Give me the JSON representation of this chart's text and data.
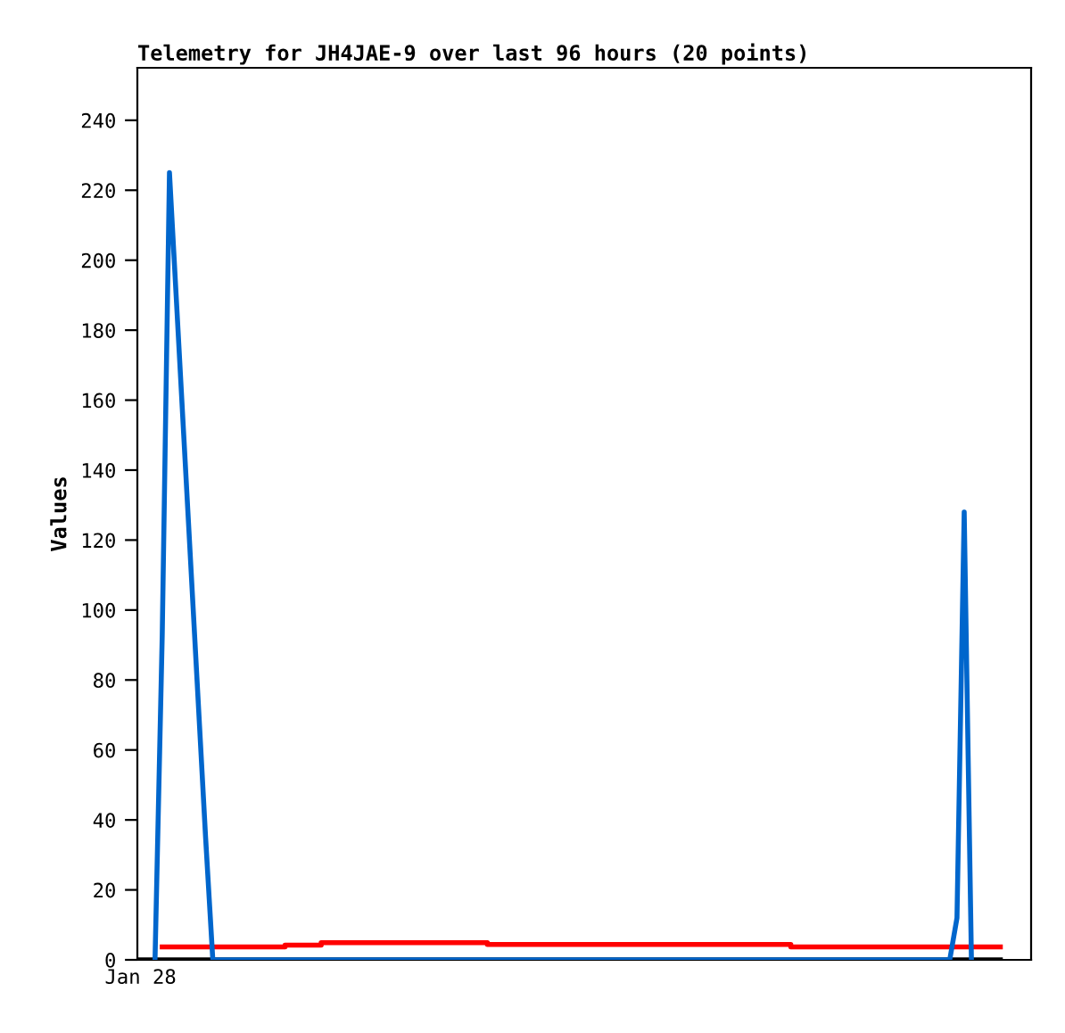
{
  "chart_data": {
    "type": "line",
    "title": "Telemetry for JH4JAE-9 over last 96 hours (20 points)",
    "ylabel": "Values",
    "categories": [
      null,
      "Jan 28",
      null,
      null,
      null,
      null,
      null,
      null,
      null,
      null,
      null,
      null,
      null,
      null,
      null,
      null,
      null,
      null,
      null,
      null,
      null,
      null,
      null,
      null,
      null,
      null,
      null,
      null,
      null,
      null,
      null,
      null,
      null,
      null,
      null,
      null,
      null,
      null,
      null,
      null,
      null,
      null,
      null,
      null,
      null,
      null,
      null,
      null,
      null,
      null,
      null,
      null,
      null,
      null,
      null,
      null,
      null,
      null,
      null,
      null,
      null,
      null,
      null,
      null,
      null,
      null,
      null,
      null,
      null,
      null,
      null,
      null,
      null,
      null,
      null,
      null,
      null,
      null,
      null,
      null,
      null,
      null,
      null,
      null,
      null,
      null,
      null,
      null,
      null,
      null,
      null,
      null,
      null,
      null,
      null,
      null,
      null,
      null,
      null,
      null,
      null,
      null,
      null,
      null,
      null,
      null,
      null,
      null,
      null,
      null,
      null,
      null,
      null,
      null,
      null,
      null,
      null,
      null,
      null,
      null,
      null
    ],
    "ylim": [
      0,
      255
    ],
    "yticks": [
      0,
      20,
      40,
      60,
      80,
      100,
      120,
      140,
      160,
      180,
      200,
      220,
      240
    ],
    "marker": "none",
    "line_style": "solid",
    "series": [
      {
        "color": "#000000",
        "values": [
          null,
          0,
          0,
          0,
          0,
          0,
          0,
          0,
          0,
          0,
          0,
          0,
          0,
          0,
          0,
          0,
          0,
          0,
          0,
          0,
          0,
          0,
          0,
          0,
          0,
          0,
          0,
          0,
          0,
          0,
          0,
          0,
          0,
          0,
          0,
          0,
          0,
          0,
          0,
          0,
          0,
          0,
          0,
          0,
          0,
          0,
          0,
          0,
          0,
          0,
          0,
          0,
          0,
          0,
          0,
          0,
          0,
          0,
          0,
          0,
          0,
          0,
          0,
          0,
          0,
          0,
          0,
          0,
          0,
          0,
          0,
          0,
          0,
          0,
          0,
          0,
          0,
          0,
          0,
          0,
          0,
          0,
          0,
          0,
          0,
          0,
          0,
          0,
          0,
          0,
          0,
          0,
          0,
          0,
          0,
          0,
          0,
          0,
          0,
          0,
          0,
          0,
          0,
          0,
          0,
          0,
          0,
          0,
          0,
          0,
          0,
          0,
          0,
          0,
          0,
          0,
          0,
          0,
          0,
          0,
          0
        ]
      },
      {
        "type": "step",
        "color": "#ff0000",
        "values": [
          null,
          null,
          null,
          null,
          3.7,
          3.7,
          3.7,
          3.7,
          3.7,
          3.7,
          3.7,
          3.7,
          3.7,
          3.7,
          3.7,
          3.7,
          3.7,
          3.7,
          3.7,
          3.7,
          3.7,
          4.2,
          4.2,
          4.2,
          4.2,
          4.2,
          4.9,
          4.9,
          4.9,
          4.9,
          4.9,
          4.9,
          4.9,
          4.9,
          4.9,
          4.9,
          4.9,
          4.9,
          4.9,
          4.9,
          4.9,
          4.9,
          4.9,
          4.9,
          4.9,
          4.9,
          4.9,
          4.9,
          4.9,
          4.4,
          4.4,
          4.4,
          4.4,
          4.4,
          4.4,
          4.4,
          4.4,
          4.4,
          4.4,
          4.4,
          4.4,
          4.4,
          4.4,
          4.4,
          4.4,
          4.4,
          4.4,
          4.4,
          4.4,
          4.4,
          4.4,
          4.4,
          4.4,
          4.4,
          4.4,
          4.4,
          4.4,
          4.4,
          4.4,
          4.4,
          4.4,
          4.4,
          4.4,
          4.4,
          4.4,
          4.4,
          4.4,
          4.4,
          4.4,
          4.4,
          4.4,
          3.7,
          3.7,
          3.7,
          3.7,
          3.7,
          3.7,
          3.7,
          3.7,
          3.7,
          3.7,
          3.7,
          3.7,
          3.7,
          3.7,
          3.7,
          3.7,
          3.7,
          3.7,
          3.7,
          3.7,
          3.7,
          3.7,
          3.7,
          3.7,
          3.7,
          3.7,
          3.7,
          3.7,
          3.7,
          3.7
        ]
      },
      {
        "color": "#0066cc",
        "values": [
          null,
          null,
          null,
          0,
          93,
          225,
          187,
          149,
          111,
          73,
          35,
          0,
          0,
          0,
          0,
          0,
          0,
          0,
          0,
          0,
          0,
          0,
          0,
          0,
          0,
          0,
          0,
          0,
          0,
          0,
          0,
          0,
          0,
          0,
          0,
          0,
          0,
          0,
          0,
          0,
          0,
          0,
          0,
          0,
          0,
          0,
          0,
          0,
          0,
          0,
          0,
          0,
          0,
          0,
          0,
          0,
          0,
          0,
          0,
          0,
          0,
          0,
          0,
          0,
          0,
          0,
          0,
          0,
          0,
          0,
          0,
          0,
          0,
          0,
          0,
          0,
          0,
          0,
          0,
          0,
          0,
          0,
          0,
          0,
          0,
          0,
          0,
          0,
          0,
          0,
          0,
          0,
          0,
          0,
          0,
          0,
          0,
          0,
          0,
          0,
          0,
          0,
          0,
          0,
          0,
          0,
          0,
          0,
          0,
          0,
          0,
          0,
          0,
          0,
          12,
          128,
          0,
          null,
          null,
          null,
          null
        ]
      }
    ]
  }
}
